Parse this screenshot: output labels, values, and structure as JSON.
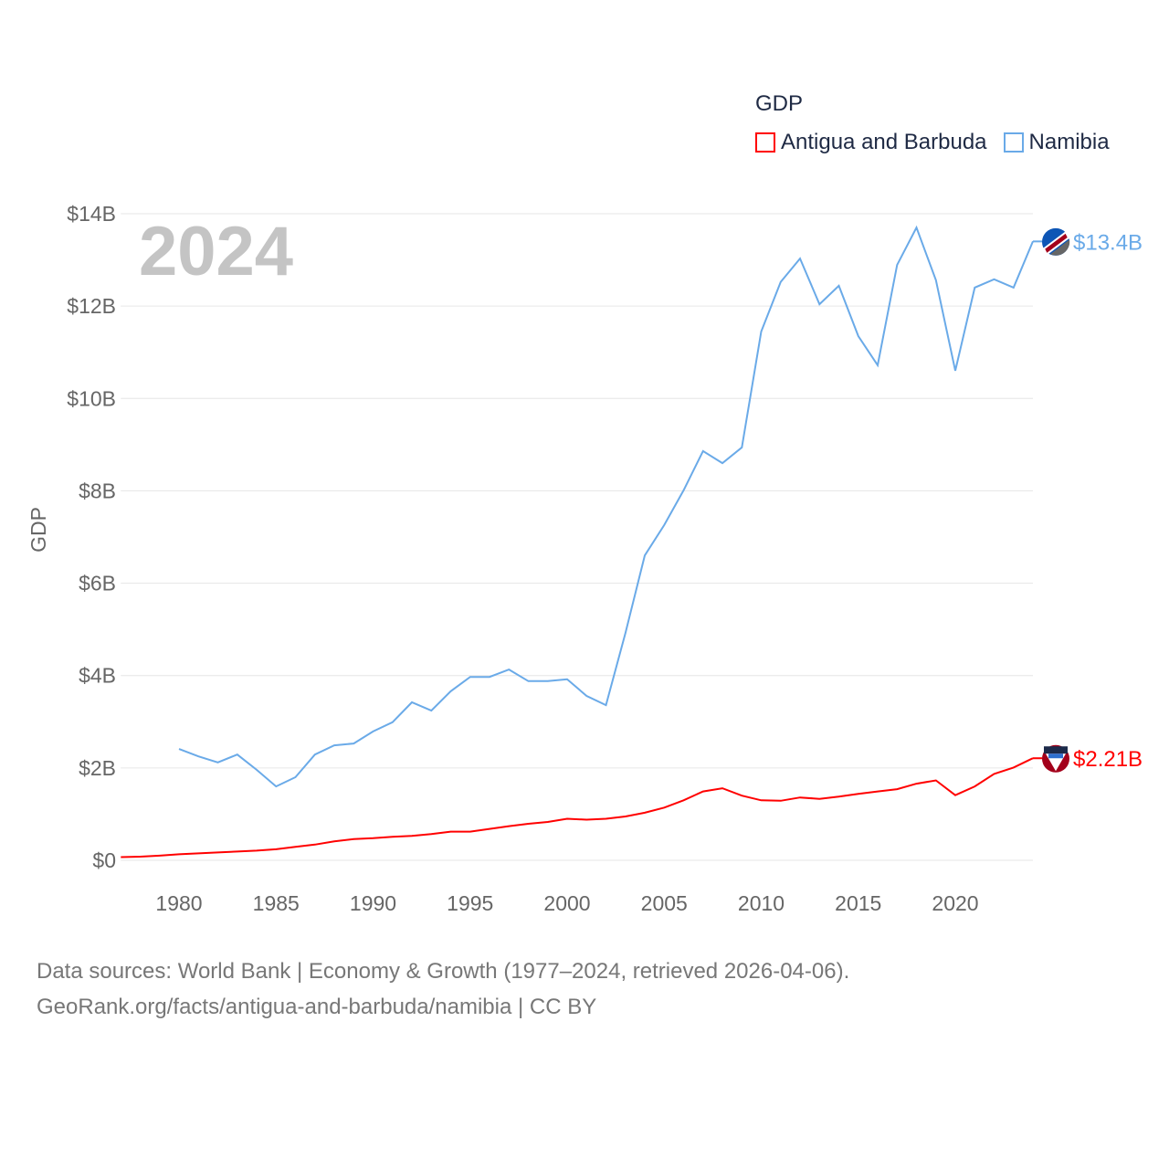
{
  "chart_data": {
    "type": "line",
    "title": "GDP",
    "ylabel": "GDP",
    "xlabel": "",
    "year_label": "2024",
    "ylim": [
      0,
      14
    ],
    "xlim": [
      1977,
      2024
    ],
    "grid": true,
    "legend_placement": "top-right",
    "yticks": [
      0,
      2,
      4,
      6,
      8,
      10,
      12,
      14
    ],
    "ytick_labels": [
      "$0",
      "$2B",
      "$4B",
      "$6B",
      "$8B",
      "$10B",
      "$12B",
      "$14B"
    ],
    "xticks": [
      1980,
      1985,
      1990,
      1995,
      2000,
      2005,
      2010,
      2015,
      2020
    ],
    "xtick_labels": [
      "1980",
      "1985",
      "1990",
      "1995",
      "2000",
      "2005",
      "2010",
      "2015",
      "2020"
    ],
    "series": [
      {
        "name": "Antigua and Barbuda",
        "color": "#ff0000",
        "end_label": "$2.21B",
        "x": [
          1977,
          1978,
          1979,
          1980,
          1981,
          1982,
          1983,
          1984,
          1985,
          1986,
          1987,
          1988,
          1989,
          1990,
          1991,
          1992,
          1993,
          1994,
          1995,
          1996,
          1997,
          1998,
          1999,
          2000,
          2001,
          2002,
          2003,
          2004,
          2005,
          2006,
          2007,
          2008,
          2009,
          2010,
          2011,
          2012,
          2013,
          2014,
          2015,
          2016,
          2017,
          2018,
          2019,
          2020,
          2021,
          2022,
          2023,
          2024
        ],
        "values": [
          0.07,
          0.08,
          0.1,
          0.13,
          0.15,
          0.17,
          0.19,
          0.21,
          0.24,
          0.29,
          0.34,
          0.41,
          0.46,
          0.48,
          0.51,
          0.53,
          0.57,
          0.62,
          0.62,
          0.68,
          0.74,
          0.79,
          0.83,
          0.9,
          0.88,
          0.9,
          0.95,
          1.03,
          1.14,
          1.3,
          1.49,
          1.56,
          1.4,
          1.3,
          1.29,
          1.36,
          1.33,
          1.38,
          1.44,
          1.49,
          1.54,
          1.66,
          1.73,
          1.41,
          1.6,
          1.87,
          2.01,
          2.21
        ]
      },
      {
        "name": "Namibia",
        "color": "#6aaae8",
        "end_label": "$13.4B",
        "x": [
          1980,
          1981,
          1982,
          1983,
          1984,
          1985,
          1986,
          1987,
          1988,
          1989,
          1990,
          1991,
          1992,
          1993,
          1994,
          1995,
          1996,
          1997,
          1998,
          1999,
          2000,
          2001,
          2002,
          2003,
          2004,
          2005,
          2006,
          2007,
          2008,
          2009,
          2010,
          2011,
          2012,
          2013,
          2014,
          2015,
          2016,
          2017,
          2018,
          2019,
          2020,
          2021,
          2022,
          2023,
          2024
        ],
        "values": [
          2.41,
          2.25,
          2.12,
          2.29,
          1.96,
          1.6,
          1.8,
          2.29,
          2.49,
          2.53,
          2.79,
          2.99,
          3.42,
          3.24,
          3.66,
          3.97,
          3.97,
          4.13,
          3.88,
          3.88,
          3.92,
          3.56,
          3.36,
          4.92,
          6.6,
          7.26,
          8.01,
          8.86,
          8.6,
          8.94,
          11.45,
          12.52,
          13.03,
          12.04,
          12.44,
          11.35,
          10.72,
          12.89,
          13.7,
          12.56,
          10.6,
          12.4,
          12.58,
          12.4,
          13.4
        ]
      }
    ]
  },
  "source": {
    "line1": "Data sources: World Bank | Economy & Growth (1977–2024, retrieved 2026-04-06).",
    "line2": "GeoRank.org/facts/antigua-and-barbuda/namibia | CC BY"
  }
}
